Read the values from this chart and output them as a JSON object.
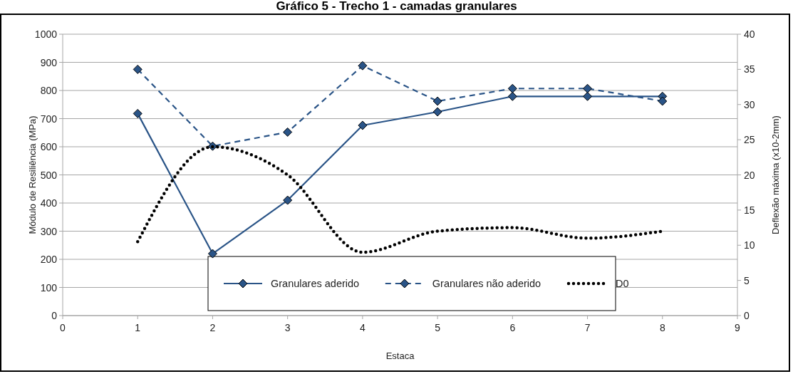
{
  "chart_data": {
    "type": "line",
    "title": "Gráfico 5 - Trecho 1 - camadas granulares",
    "xlabel": "Estaca",
    "ylabel": "Módulo de Resiliência (MPa)",
    "y2label": "Deflexão máxima (x10-2mm)",
    "x": [
      1,
      2,
      3,
      4,
      5,
      6,
      7,
      8
    ],
    "series": [
      {
        "name": "Granulares aderido",
        "color": "#2a5487",
        "values": [
          718,
          220,
          410,
          676,
          724,
          779,
          779,
          779
        ],
        "marker": "diamond",
        "line_style": "solid"
      },
      {
        "name": "Granulares não aderido",
        "color": "#2a5487",
        "values": [
          875,
          602,
          652,
          888,
          762,
          807,
          807,
          762
        ],
        "marker": "diamond",
        "line_style": "dashed"
      },
      {
        "name": "D0",
        "color": "#000000",
        "values": [
          10.5,
          24,
          20,
          9,
          12,
          12.5,
          11,
          12
        ],
        "axis": "y2",
        "marker": "none",
        "line_style": "dotted"
      }
    ],
    "xlim": [
      0,
      9
    ],
    "xticks": [
      0,
      1,
      2,
      3,
      4,
      5,
      6,
      7,
      8,
      9
    ],
    "ylim": [
      0,
      1000
    ],
    "yticks": [
      0,
      100,
      200,
      300,
      400,
      500,
      600,
      700,
      800,
      900,
      1000
    ],
    "y2lim": [
      0,
      40
    ],
    "y2ticks": [
      0,
      5,
      10,
      15,
      20,
      25,
      30,
      35,
      40
    ],
    "grid": "y",
    "legend": "bottom"
  }
}
